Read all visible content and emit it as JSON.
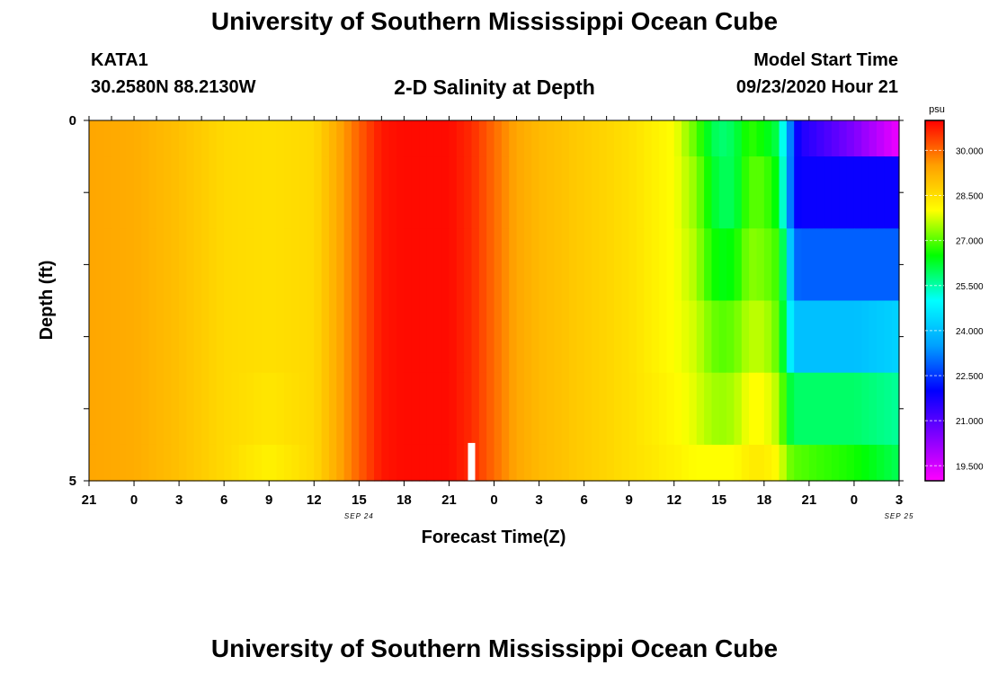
{
  "header": {
    "title": "University of Southern Mississippi Ocean Cube",
    "station_id": "KATA1",
    "station_coords": "30.2580N 88.2130W",
    "model_start_label": "Model Start Time",
    "model_start_time": "09/23/2020 Hour 21",
    "footer_title": "University of Southern Mississippi Ocean Cube"
  },
  "chart_data": {
    "type": "heatmap",
    "title": "2-D Salinity at Depth",
    "xlabel": "Forecast Time(Z)",
    "ylabel": "Depth (ft)",
    "x_ticks": [
      "21",
      "0",
      "3",
      "6",
      "9",
      "12",
      "15",
      "18",
      "21",
      "0",
      "3",
      "6",
      "9",
      "12",
      "15",
      "18",
      "21",
      "0",
      "3"
    ],
    "date_labels": [
      {
        "text": "SEP 24",
        "hour_index": 12
      },
      {
        "text": "SEP 25",
        "hour_index": 36
      }
    ],
    "x_range_hours": [
      0,
      54
    ],
    "y_ticks": [
      "0",
      "5"
    ],
    "y_range_ft": [
      0,
      5
    ],
    "current_time_hour": 25.5,
    "colorbar": {
      "unit": "psu",
      "range": [
        19.0,
        31.0
      ],
      "ticks": [
        "30.000",
        "28.500",
        "27.000",
        "25.500",
        "24.000",
        "22.500",
        "21.000",
        "19.500"
      ]
    },
    "hours": [
      0,
      3,
      6,
      9,
      12,
      15,
      16.5,
      18,
      19.5,
      21,
      22.5,
      24,
      25.5,
      27,
      28.5,
      30,
      33,
      36,
      39,
      40.5,
      41,
      42,
      43,
      44,
      45,
      46,
      46.5,
      47,
      47.5,
      48,
      51,
      54
    ],
    "series": [
      {
        "name": "0.0-0.5 ft",
        "values": [
          29.4,
          29.3,
          29.0,
          28.6,
          28.5,
          28.6,
          29.3,
          30.1,
          30.8,
          30.9,
          30.9,
          30.9,
          30.6,
          30.0,
          29.4,
          29.1,
          28.8,
          28.5,
          28.0,
          27.0,
          26.5,
          25.8,
          26.0,
          26.8,
          26.5,
          26.0,
          24.2,
          22.2,
          21.6,
          21.5,
          20.5,
          19.2
        ]
      },
      {
        "name": "0.5-1.5 ft",
        "values": [
          29.4,
          29.3,
          29.0,
          28.6,
          28.5,
          28.6,
          29.3,
          30.1,
          30.8,
          30.9,
          30.9,
          30.9,
          30.6,
          30.0,
          29.4,
          29.1,
          28.8,
          28.5,
          28.0,
          27.3,
          26.8,
          26.0,
          26.0,
          27.0,
          27.0,
          26.3,
          24.3,
          22.0,
          21.9,
          21.9,
          21.9,
          21.9
        ]
      },
      {
        "name": "1.5-2.5 ft",
        "values": [
          29.4,
          29.3,
          29.0,
          28.6,
          28.5,
          28.6,
          29.3,
          30.1,
          30.8,
          30.9,
          30.9,
          30.9,
          30.6,
          30.0,
          29.4,
          29.1,
          28.8,
          28.5,
          28.0,
          27.5,
          27.0,
          26.4,
          26.5,
          27.3,
          27.2,
          26.8,
          25.2,
          23.0,
          22.9,
          22.9,
          22.9,
          22.9
        ]
      },
      {
        "name": "2.5-3.5 ft",
        "values": [
          29.4,
          29.3,
          29.0,
          28.6,
          28.5,
          28.6,
          29.3,
          30.1,
          30.8,
          30.9,
          30.9,
          30.9,
          30.6,
          30.0,
          29.4,
          29.1,
          28.8,
          28.5,
          28.0,
          27.7,
          27.4,
          27.0,
          27.1,
          27.6,
          27.6,
          27.0,
          25.5,
          24.0,
          24.0,
          24.0,
          24.0,
          24.3
        ]
      },
      {
        "name": "3.5-4.5 ft",
        "values": [
          29.4,
          29.3,
          29.0,
          28.6,
          28.4,
          28.6,
          29.3,
          30.1,
          30.8,
          30.9,
          30.9,
          30.9,
          30.6,
          30.0,
          29.4,
          29.1,
          28.8,
          28.5,
          28.1,
          27.8,
          27.6,
          27.4,
          27.5,
          28.0,
          28.0,
          27.5,
          26.4,
          25.9,
          25.9,
          25.9,
          25.9,
          25.6
        ]
      },
      {
        "name": "4.5-5.0 ft",
        "values": [
          29.4,
          29.3,
          29.0,
          28.6,
          28.2,
          28.6,
          29.3,
          30.1,
          30.8,
          30.9,
          30.9,
          30.9,
          30.6,
          30.0,
          29.4,
          29.1,
          28.8,
          28.5,
          28.2,
          28.0,
          28.0,
          28.0,
          28.0,
          28.3,
          28.3,
          28.0,
          27.3,
          27.0,
          27.0,
          26.9,
          26.6,
          26.0
        ]
      }
    ]
  }
}
